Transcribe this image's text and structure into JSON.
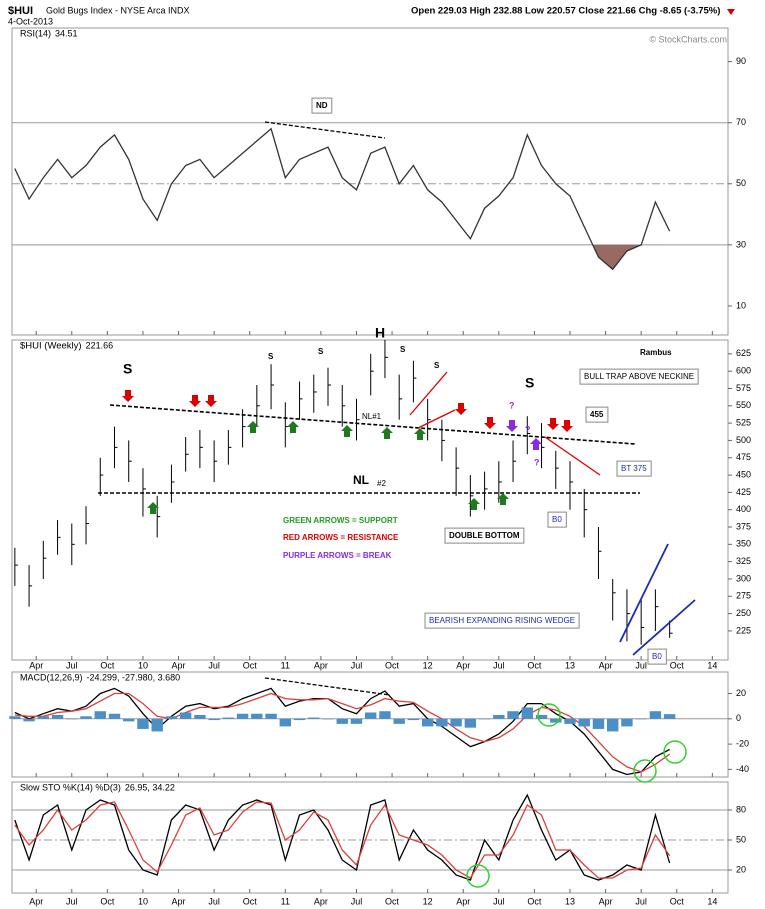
{
  "header": {
    "symbol": "$HUI",
    "name": "Gold Bugs Index - NYSE Arca INDX",
    "date": "4-Oct-2013",
    "quote": "Open 229.03 High 232.88 Low 220.57 Close 221.66 Chg -8.65 (-3.75%)",
    "credit": "© StockCharts.com"
  },
  "time": {
    "x": [
      2009.1,
      2009.2,
      2009.3,
      2009.4,
      2009.5,
      2009.6,
      2009.7,
      2009.8,
      2009.9,
      2010.0,
      2010.1,
      2010.2,
      2010.3,
      2010.4,
      2010.5,
      2010.6,
      2010.7,
      2010.8,
      2010.9,
      2011.0,
      2011.1,
      2011.2,
      2011.3,
      2011.4,
      2011.5,
      2011.6,
      2011.7,
      2011.8,
      2011.9,
      2012.0,
      2012.1,
      2012.2,
      2012.3,
      2012.4,
      2012.5,
      2012.6,
      2012.7,
      2012.8,
      2012.9,
      2013.0,
      2013.1,
      2013.2,
      2013.3,
      2013.4,
      2013.5,
      2013.6,
      2013.7
    ],
    "xlim": [
      2009.08,
      2014.11
    ],
    "xticks": [
      {
        "value": 2009.25,
        "label": "Apr"
      },
      {
        "value": 2009.5,
        "label": "Jul"
      },
      {
        "value": 2009.75,
        "label": "Oct"
      },
      {
        "value": 2010,
        "label": "10"
      },
      {
        "value": 2010.25,
        "label": "Apr"
      },
      {
        "value": 2010.5,
        "label": "Jul"
      },
      {
        "value": 2010.75,
        "label": "Oct"
      },
      {
        "value": 2011,
        "label": "11"
      },
      {
        "value": 2011.25,
        "label": "Apr"
      },
      {
        "value": 2011.5,
        "label": "Jul"
      },
      {
        "value": 2011.75,
        "label": "Oct"
      },
      {
        "value": 2012,
        "label": "12"
      },
      {
        "value": 2012.25,
        "label": "Apr"
      },
      {
        "value": 2012.5,
        "label": "Jul"
      },
      {
        "value": 2012.75,
        "label": "Oct"
      },
      {
        "value": 2013,
        "label": "13"
      },
      {
        "value": 2013.25,
        "label": "Apr"
      },
      {
        "value": 2013.5,
        "label": "Jul"
      },
      {
        "value": 2013.75,
        "label": "Oct"
      },
      {
        "value": 2014,
        "label": "14"
      }
    ]
  },
  "chart_data": [
    {
      "type": "line",
      "title": "RSI(14)",
      "ylim": [
        0.5,
        101
      ],
      "yticks": [
        10,
        30,
        50,
        70,
        90
      ],
      "reference_lines": [
        70,
        50,
        30
      ],
      "oversold": 30,
      "oversold_color": "#9a6a62",
      "annotations": [
        "ND"
      ],
      "series": [
        {
          "color": "#333333",
          "values": [
            55,
            45,
            52,
            58,
            52,
            56,
            62,
            66,
            58,
            45,
            38,
            50,
            56,
            58,
            52,
            56,
            60,
            64,
            68,
            52,
            58,
            60,
            62,
            52,
            48,
            60,
            62,
            50,
            56,
            48,
            44,
            38,
            32,
            42,
            46,
            52,
            66,
            56,
            50,
            46,
            36,
            26,
            22,
            28,
            30,
            44,
            34.51
          ]
        }
      ]
    },
    {
      "type": "ohlc",
      "title": "$HUI (Weekly)",
      "color": "#000000",
      "ylim": [
        183,
        645
      ],
      "yticks": [
        225,
        250,
        275,
        300,
        325,
        350,
        375,
        400,
        425,
        450,
        475,
        500,
        525,
        550,
        575,
        600,
        625
      ],
      "high": [
        345,
        320,
        355,
        385,
        380,
        405,
        475,
        520,
        500,
        460,
        420,
        465,
        505,
        515,
        500,
        515,
        545,
        580,
        610,
        555,
        585,
        595,
        605,
        580,
        560,
        625,
        645,
        595,
        615,
        560,
        530,
        490,
        450,
        455,
        470,
        500,
        535,
        525,
        485,
        470,
        430,
        375,
        300,
        285,
        270,
        285,
        240
      ],
      "low": [
        290,
        260,
        300,
        335,
        320,
        350,
        420,
        460,
        440,
        390,
        360,
        410,
        455,
        460,
        440,
        465,
        490,
        520,
        545,
        490,
        530,
        540,
        550,
        520,
        500,
        565,
        590,
        530,
        555,
        500,
        470,
        420,
        390,
        400,
        410,
        440,
        480,
        460,
        430,
        400,
        360,
        300,
        240,
        210,
        205,
        225,
        215
      ],
      "close": [
        320,
        290,
        330,
        360,
        350,
        380,
        450,
        490,
        470,
        430,
        390,
        440,
        480,
        490,
        470,
        490,
        520,
        550,
        580,
        520,
        560,
        570,
        580,
        550,
        530,
        600,
        620,
        560,
        590,
        530,
        500,
        460,
        420,
        430,
        440,
        470,
        510,
        490,
        460,
        440,
        400,
        340,
        280,
        250,
        230,
        260,
        221.66
      ],
      "annotations": [
        "S",
        "S",
        "S",
        "H",
        "S",
        "S",
        "S",
        "NL#1",
        "NL",
        "#2",
        "GREEN ARROWS = SUPPORT",
        "RED ARROWS = RESISTANCE",
        "PURPLE ARROWS = BREAK",
        "DOUBLE BOTTOM",
        "BULL TRAP ABOVE NECKINE",
        "455",
        "BT 375",
        "B0",
        "BEARISH EXPANDING RISING WEDGE",
        "B0",
        "?",
        "?",
        "?",
        "Rambus"
      ]
    },
    {
      "type": "line",
      "title": "MACD(12,26,9)",
      "legend_values": "-24.299, -27.980, 3.680",
      "ylim": [
        -46,
        37
      ],
      "yticks": [
        20,
        0,
        -20,
        -40
      ],
      "reference_lines": [
        0
      ],
      "series": [
        {
          "color": "#000000",
          "values": [
            5,
            0,
            4,
            8,
            6,
            10,
            20,
            24,
            18,
            4,
            -8,
            2,
            10,
            12,
            8,
            10,
            16,
            20,
            24,
            10,
            14,
            16,
            16,
            8,
            4,
            16,
            22,
            10,
            12,
            0,
            -6,
            -14,
            -22,
            -18,
            -12,
            -2,
            12,
            12,
            4,
            -2,
            -12,
            -26,
            -40,
            -44,
            -42,
            -30,
            -24.299
          ]
        },
        {
          "color": "#d9413a",
          "values": [
            3,
            2,
            2,
            5,
            6,
            8,
            14,
            20,
            20,
            12,
            2,
            0,
            5,
            9,
            9,
            9,
            12,
            16,
            20,
            16,
            15,
            15,
            16,
            12,
            8,
            11,
            16,
            14,
            13,
            6,
            0,
            -8,
            -15,
            -18,
            -15,
            -8,
            3,
            9,
            7,
            2,
            -6,
            -18,
            -30,
            -38,
            -42,
            -36,
            -27.98
          ]
        },
        {
          "color": "#4a8fc7",
          "style": "bar",
          "values": [
            2,
            -2,
            2,
            3,
            0,
            2,
            6,
            4,
            -2,
            -8,
            -10,
            2,
            5,
            3,
            -1,
            1,
            4,
            4,
            4,
            -6,
            -1,
            1,
            0,
            -4,
            -4,
            5,
            6,
            -4,
            -1,
            -6,
            -6,
            -6,
            -7,
            0,
            3,
            6,
            9,
            3,
            -3,
            -4,
            -6,
            -8,
            -10,
            -6,
            0,
            6,
            3.68
          ]
        }
      ]
    },
    {
      "type": "line",
      "title": "Slow STO %K(14) %D(3)",
      "legend_values": "26.95, 34.22",
      "ylim": [
        -3,
        108
      ],
      "yticks": [
        20,
        50,
        80
      ],
      "reference_lines": [
        80,
        50,
        20
      ],
      "series": [
        {
          "color": "#000000",
          "values": [
            70,
            30,
            75,
            85,
            40,
            80,
            90,
            85,
            40,
            20,
            15,
            70,
            85,
            80,
            40,
            70,
            85,
            90,
            85,
            30,
            75,
            80,
            60,
            30,
            20,
            85,
            90,
            30,
            60,
            40,
            30,
            15,
            10,
            50,
            30,
            70,
            95,
            60,
            30,
            40,
            15,
            10,
            15,
            25,
            20,
            75,
            26.95
          ]
        },
        {
          "color": "#d9413a",
          "values": [
            65,
            45,
            60,
            80,
            60,
            70,
            85,
            88,
            60,
            30,
            18,
            45,
            75,
            82,
            55,
            60,
            78,
            88,
            87,
            50,
            60,
            78,
            70,
            40,
            25,
            65,
            85,
            55,
            50,
            45,
            35,
            20,
            12,
            35,
            35,
            55,
            85,
            75,
            40,
            40,
            25,
            12,
            12,
            20,
            22,
            55,
            34.22
          ]
        }
      ]
    }
  ]
}
